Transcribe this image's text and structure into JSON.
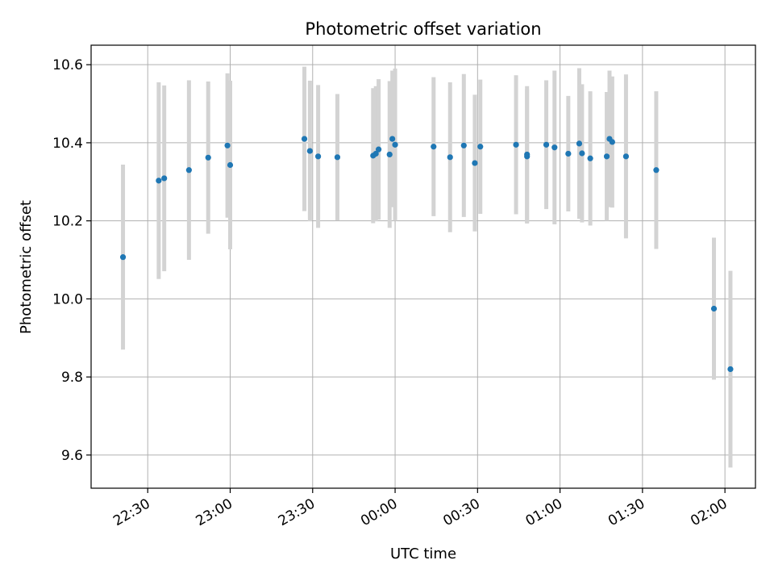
{
  "chart_data": {
    "type": "scatter",
    "title": "Photometric offset variation",
    "xlabel": "UTC time",
    "ylabel": "Photometric offset",
    "x_ticks": [
      "22:30",
      "23:00",
      "23:30",
      "00:00",
      "00:30",
      "01:00",
      "01:30",
      "02:00"
    ],
    "x_tick_minutes": [
      -90,
      -60,
      -30,
      0,
      30,
      60,
      90,
      120
    ],
    "xlim_minutes": [
      -110.6,
      131.1
    ],
    "ylim": [
      9.515,
      10.65
    ],
    "y_ticks": [
      9.6,
      9.8,
      10.0,
      10.2,
      10.4,
      10.6
    ],
    "grid": true,
    "colors": {
      "points": "#1f77b4",
      "errorbars": "#d3d3d3",
      "grid": "#b0b0b0"
    },
    "series": [
      {
        "points": [
          {
            "x": "22:21",
            "y": 10.107,
            "err": 0.237
          },
          {
            "x": "22:34",
            "y": 10.303,
            "err": 0.252
          },
          {
            "x": "22:36",
            "y": 10.309,
            "err": 0.238
          },
          {
            "x": "22:45",
            "y": 10.33,
            "err": 0.23
          },
          {
            "x": "22:52",
            "y": 10.362,
            "err": 0.195
          },
          {
            "x": "22:59",
            "y": 10.393,
            "err": 0.185
          },
          {
            "x": "23:00",
            "y": 10.343,
            "err": 0.216
          },
          {
            "x": "23:27",
            "y": 10.41,
            "err": 0.185
          },
          {
            "x": "23:29",
            "y": 10.379,
            "err": 0.18
          },
          {
            "x": "23:32",
            "y": 10.365,
            "err": 0.183
          },
          {
            "x": "23:39",
            "y": 10.363,
            "err": 0.162
          },
          {
            "x": "23:52",
            "y": 10.367,
            "err": 0.173
          },
          {
            "x": "23:53",
            "y": 10.372,
            "err": 0.173
          },
          {
            "x": "23:54",
            "y": 10.383,
            "err": 0.18
          },
          {
            "x": "23:58",
            "y": 10.37,
            "err": 0.188
          },
          {
            "x": "23:59",
            "y": 10.41,
            "err": 0.175
          },
          {
            "x": "00:00",
            "y": 10.395,
            "err": 0.195
          },
          {
            "x": "00:14",
            "y": 10.39,
            "err": 0.178
          },
          {
            "x": "00:20",
            "y": 10.363,
            "err": 0.192
          },
          {
            "x": "00:25",
            "y": 10.393,
            "err": 0.183
          },
          {
            "x": "00:29",
            "y": 10.348,
            "err": 0.175
          },
          {
            "x": "00:31",
            "y": 10.39,
            "err": 0.172
          },
          {
            "x": "00:44",
            "y": 10.395,
            "err": 0.178
          },
          {
            "x": "00:48",
            "y": 10.365,
            "err": 0.172
          },
          {
            "x": "00:48",
            "y": 10.37,
            "err": 0.175
          },
          {
            "x": "00:55",
            "y": 10.395,
            "err": 0.165
          },
          {
            "x": "00:58",
            "y": 10.388,
            "err": 0.197
          },
          {
            "x": "01:03",
            "y": 10.372,
            "err": 0.148
          },
          {
            "x": "01:07",
            "y": 10.398,
            "err": 0.193
          },
          {
            "x": "01:08",
            "y": 10.373,
            "err": 0.177
          },
          {
            "x": "01:11",
            "y": 10.36,
            "err": 0.172
          },
          {
            "x": "01:17",
            "y": 10.365,
            "err": 0.165
          },
          {
            "x": "01:18",
            "y": 10.41,
            "err": 0.175
          },
          {
            "x": "01:19",
            "y": 10.402,
            "err": 0.168
          },
          {
            "x": "01:24",
            "y": 10.365,
            "err": 0.21
          },
          {
            "x": "01:35",
            "y": 10.33,
            "err": 0.202
          },
          {
            "x": "01:56",
            "y": 9.975,
            "err": 0.182
          },
          {
            "x": "02:02",
            "y": 9.82,
            "err": 0.252
          }
        ]
      }
    ]
  }
}
